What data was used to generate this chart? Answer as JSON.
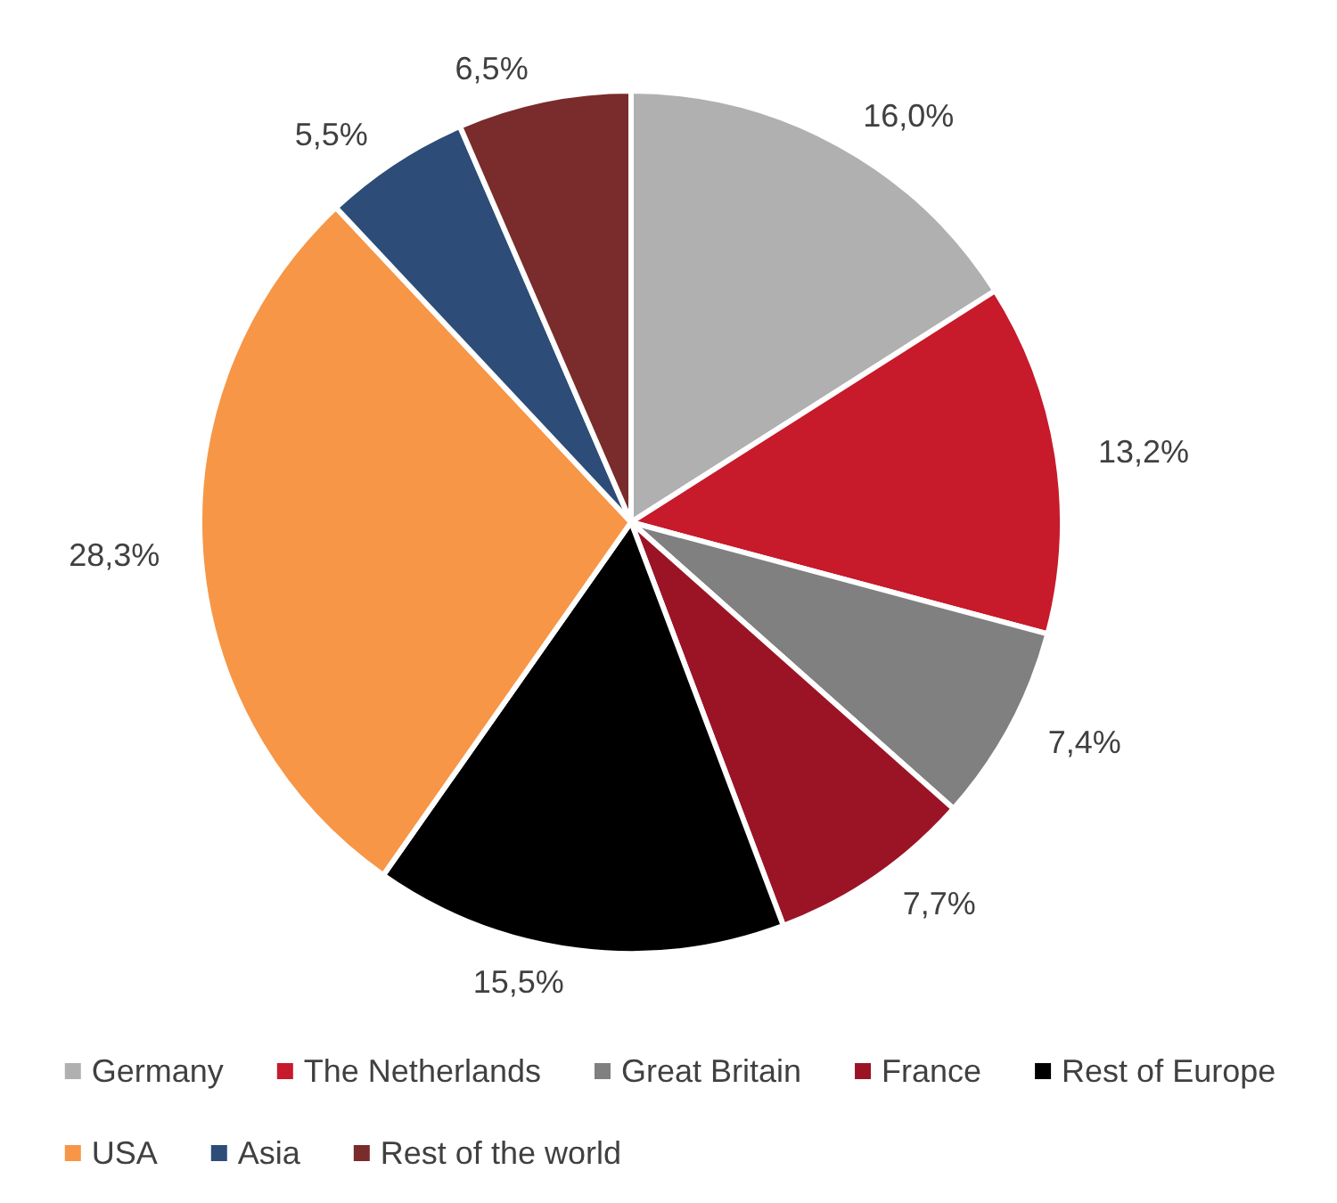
{
  "chart_data": {
    "type": "pie",
    "categories": [
      "Germany",
      "The Netherlands",
      "Great Britain",
      "France",
      "Rest of Europe",
      "USA",
      "Asia",
      "Rest of the world"
    ],
    "values": [
      16.0,
      13.2,
      7.4,
      7.7,
      15.5,
      28.3,
      5.5,
      6.5
    ],
    "value_labels": [
      "16,0%",
      "13,2%",
      "7,4%",
      "7,7%",
      "15,5%",
      "28,3%",
      "5,5%",
      "6,5%"
    ],
    "colors": [
      "#b0b0b0",
      "#c71a2b",
      "#808080",
      "#9b1426",
      "#000000",
      "#f79646",
      "#2d4d78",
      "#7a2b2b"
    ],
    "legend": "bottom"
  }
}
